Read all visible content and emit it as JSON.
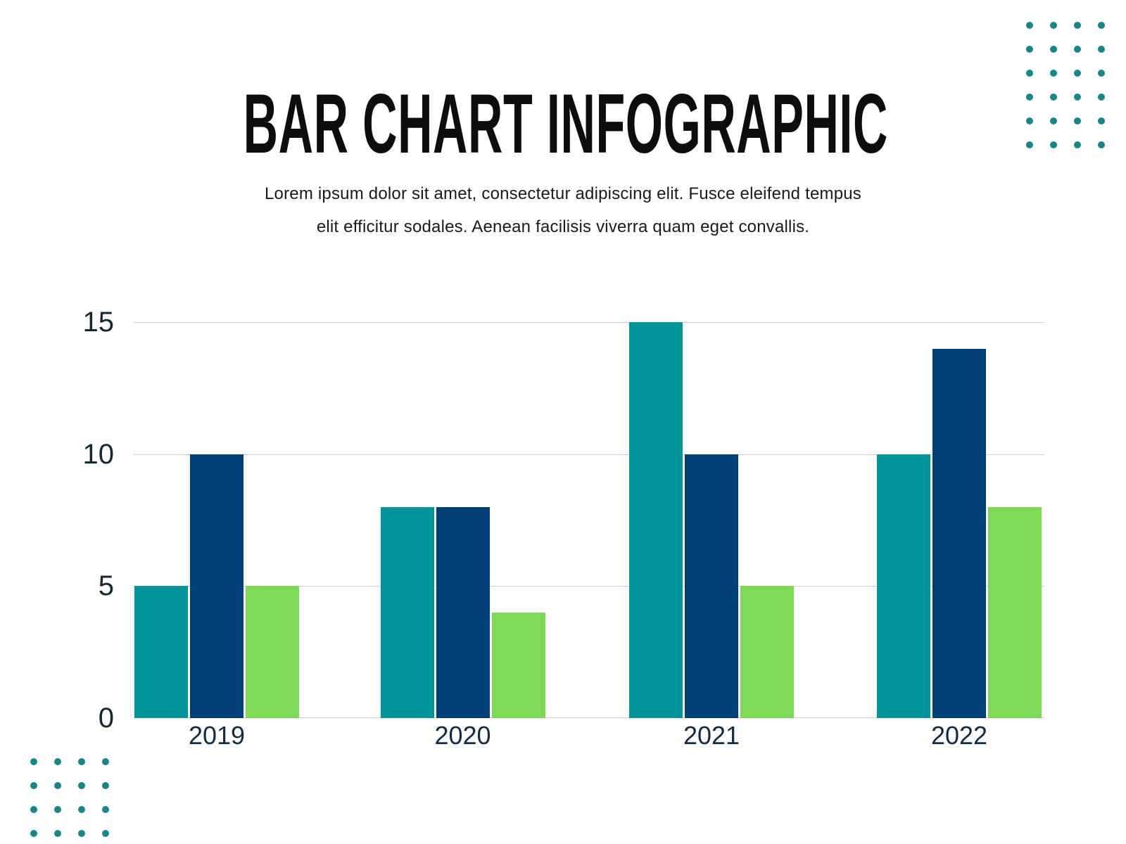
{
  "page": {
    "background": "#ffffff"
  },
  "header": {
    "title": "BAR CHART INFOGRAPHIC",
    "subtitle_line1": "Lorem ipsum dolor sit amet, consectetur adipiscing elit. Fusce eleifend tempus",
    "subtitle_line2": "elit efficitur sodales. Aenean facilisis viverra quam eget convallis."
  },
  "chart_data": {
    "type": "bar",
    "categories": [
      "2019",
      "2020",
      "2021",
      "2022"
    ],
    "series": [
      {
        "name": "teal",
        "color": "#00949B",
        "values": [
          5,
          8,
          15,
          10
        ]
      },
      {
        "name": "navy",
        "color": "#004077",
        "values": [
          10,
          8,
          10,
          14
        ]
      },
      {
        "name": "green",
        "color": "#7ED957",
        "values": [
          5,
          4,
          5,
          8
        ]
      }
    ],
    "title": "BAR CHART INFOGRAPHIC",
    "xlabel": "",
    "ylabel": "",
    "yticks": [
      0,
      5,
      10,
      15
    ],
    "ylim": [
      0,
      15
    ],
    "grid": true,
    "legend": "none",
    "gridline_color": "#C9CED3",
    "tick_label_color": "#16272F",
    "category_label_color": "#112C44"
  },
  "decorations": {
    "dot_color": "#17868B",
    "top_right_grid": {
      "rows": 6,
      "cols": 4
    },
    "bottom_left_grid": {
      "rows": 4,
      "cols": 4
    }
  }
}
